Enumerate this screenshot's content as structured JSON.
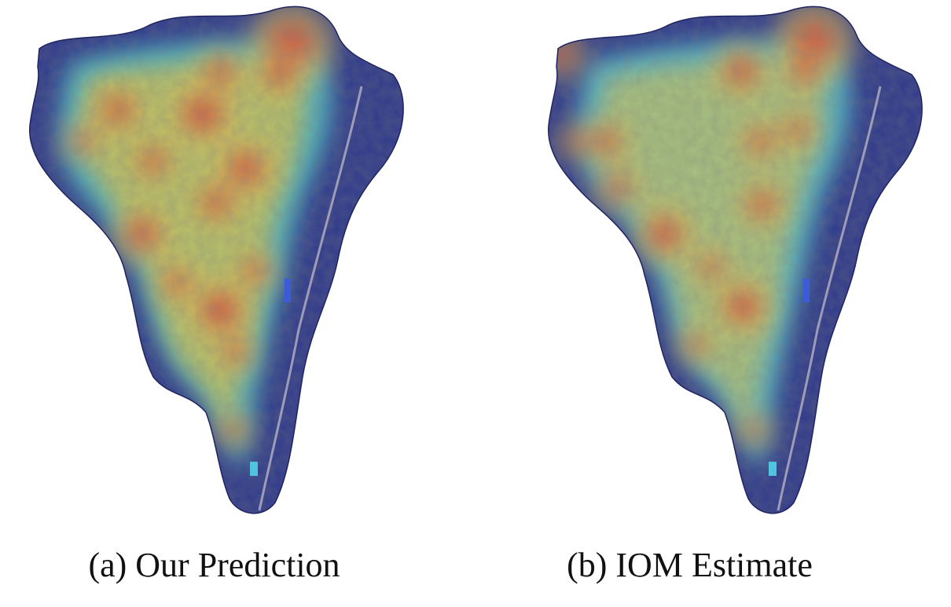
{
  "panels": [
    {
      "caption": "(a) Our Prediction",
      "hotspots": [
        {
          "x": 370,
          "y": 58,
          "r": 42,
          "intensity": 1.0
        },
        {
          "x": 355,
          "y": 95,
          "r": 26,
          "intensity": 0.9
        },
        {
          "x": 258,
          "y": 145,
          "r": 36,
          "intensity": 0.95
        },
        {
          "x": 312,
          "y": 215,
          "r": 34,
          "intensity": 0.9
        },
        {
          "x": 280,
          "y": 92,
          "r": 28,
          "intensity": 0.75
        },
        {
          "x": 150,
          "y": 140,
          "r": 30,
          "intensity": 0.8
        },
        {
          "x": 195,
          "y": 205,
          "r": 28,
          "intensity": 0.7
        },
        {
          "x": 275,
          "y": 258,
          "r": 30,
          "intensity": 0.75
        },
        {
          "x": 180,
          "y": 298,
          "r": 32,
          "intensity": 0.85
        },
        {
          "x": 280,
          "y": 395,
          "r": 34,
          "intensity": 1.0
        },
        {
          "x": 225,
          "y": 360,
          "r": 26,
          "intensity": 0.7
        },
        {
          "x": 325,
          "y": 345,
          "r": 24,
          "intensity": 0.75
        },
        {
          "x": 300,
          "y": 448,
          "r": 24,
          "intensity": 0.7
        },
        {
          "x": 298,
          "y": 548,
          "r": 20,
          "intensity": 0.75
        },
        {
          "x": 105,
          "y": 180,
          "r": 24,
          "intensity": 0.65
        }
      ]
    },
    {
      "caption": "(b) IOM Estimate",
      "hotspots": [
        {
          "x": 430,
          "y": 55,
          "r": 40,
          "intensity": 1.0
        },
        {
          "x": 418,
          "y": 90,
          "r": 24,
          "intensity": 0.85
        },
        {
          "x": 338,
          "y": 90,
          "r": 30,
          "intensity": 0.85
        },
        {
          "x": 362,
          "y": 180,
          "r": 26,
          "intensity": 0.7
        },
        {
          "x": 410,
          "y": 165,
          "r": 24,
          "intensity": 0.7
        },
        {
          "x": 165,
          "y": 180,
          "r": 26,
          "intensity": 0.8
        },
        {
          "x": 180,
          "y": 240,
          "r": 28,
          "intensity": 0.65
        },
        {
          "x": 365,
          "y": 260,
          "r": 28,
          "intensity": 0.75
        },
        {
          "x": 240,
          "y": 298,
          "r": 32,
          "intensity": 0.9
        },
        {
          "x": 340,
          "y": 390,
          "r": 30,
          "intensity": 1.0
        },
        {
          "x": 300,
          "y": 340,
          "r": 24,
          "intensity": 0.65
        },
        {
          "x": 280,
          "y": 440,
          "r": 22,
          "intensity": 0.65
        },
        {
          "x": 355,
          "y": 548,
          "r": 20,
          "intensity": 0.7
        },
        {
          "x": 110,
          "y": 70,
          "r": 26,
          "intensity": 0.7
        },
        {
          "x": 128,
          "y": 180,
          "r": 22,
          "intensity": 0.6
        }
      ]
    }
  ],
  "colors": {
    "cold": "#3b3f9e",
    "cool": "#4fb3c8",
    "warm": "#d8c35a",
    "hot": "#d84a3a",
    "satellite": "#6d6478"
  }
}
